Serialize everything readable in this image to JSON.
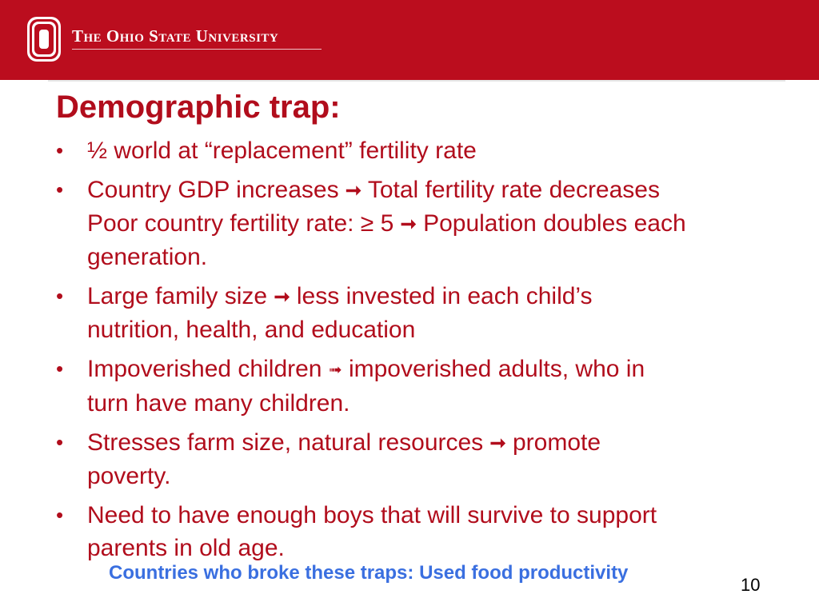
{
  "header": {
    "university_name": "The Ohio State University",
    "brand_color": "#bb0d1e",
    "logo_icon": "block-o-icon",
    "logo_letter": "O"
  },
  "slide": {
    "title": "Demographic trap:",
    "title_color": "#b10d1c",
    "bullet_symbol": "•",
    "bullets": [
      {
        "lines": [
          "½ world at “replacement” fertility rate"
        ]
      },
      {
        "line1_a": "Country GDP increases",
        "line1_b": "Total fertility rate decreases",
        "line2_a": "Poor country fertility rate: ≥ 5",
        "line2_b": "Population doubles each",
        "line3": "generation."
      },
      {
        "line1_a": "Large family size",
        "line1_b": "less invested in each child’s",
        "line2": "nutrition, health, and education"
      },
      {
        "line1_a": "Impoverished children",
        "line1_b": "impoverished adults, who in",
        "line2": "turn have many children."
      },
      {
        "line1_a": "Stresses farm size, natural resources",
        "line1_b": "promote",
        "line2": "poverty."
      },
      {
        "line1": "Need to have enough boys that will survive to support",
        "line2": "parents in old age."
      }
    ],
    "arrow_symbol": "➞",
    "dashed_arrow_symbol": "➟",
    "footer_note": "Countries who broke these traps: Used food productivity",
    "footer_color": "#3a6fe0",
    "page_number": "10"
  }
}
